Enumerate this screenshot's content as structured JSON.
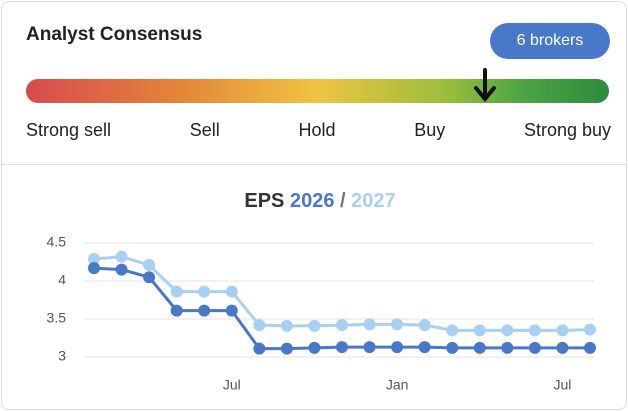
{
  "consensus": {
    "title": "Analyst Consensus",
    "brokers": "6 brokers",
    "scale_labels": [
      "Strong sell",
      "Sell",
      "Hold",
      "Buy",
      "Strong buy"
    ],
    "rating": 4.15,
    "rating_range": [
      1,
      5
    ]
  },
  "chart_data": {
    "type": "line",
    "title": "EPS",
    "separator": "/",
    "categories": [
      null,
      null,
      null,
      null,
      null,
      "Jul",
      null,
      null,
      null,
      null,
      null,
      "Jan",
      null,
      null,
      null,
      null,
      null,
      "Jul",
      null
    ],
    "series": [
      {
        "name": "2026",
        "color": "#4a78c9",
        "values": [
          4.17,
          4.15,
          4.05,
          3.61,
          3.61,
          3.61,
          3.11,
          3.11,
          3.12,
          3.13,
          3.13,
          3.13,
          3.13,
          3.12,
          3.12,
          3.12,
          3.12,
          3.12,
          3.12
        ]
      },
      {
        "name": "2027",
        "color": "#a8d0f5",
        "values": [
          4.29,
          4.32,
          4.21,
          3.86,
          3.86,
          3.86,
          3.42,
          3.41,
          3.41,
          3.42,
          3.43,
          3.43,
          3.42,
          3.35,
          3.35,
          3.35,
          3.35,
          3.35,
          3.36
        ]
      }
    ],
    "ylim": [
      2.85,
      4.55
    ],
    "yticks": [
      3,
      3.5,
      4,
      4.5
    ],
    "grid": true
  }
}
